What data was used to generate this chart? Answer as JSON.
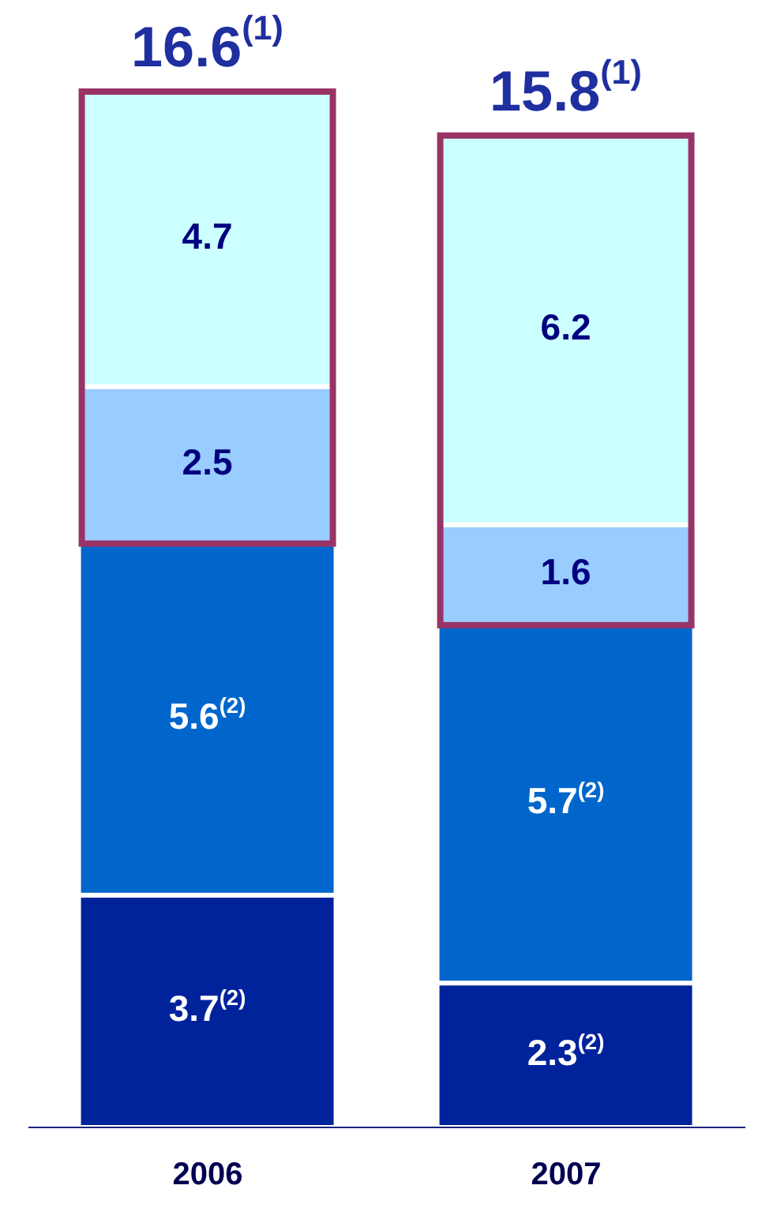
{
  "chart_data": {
    "type": "bar",
    "stacked": true,
    "categories": [
      "2006",
      "2007"
    ],
    "series": [
      {
        "color": "#00239c",
        "values": [
          3.7,
          2.3
        ],
        "value_labels": [
          "3.7$^{(2)}$",
          "2.3$^{(2)}$"
        ]
      },
      {
        "color": "#0066cc",
        "values": [
          5.6,
          5.7
        ],
        "value_labels": [
          "5.6$^{(2)}$",
          "5.7$^{(2)}$"
        ]
      },
      {
        "color": "#99ccff",
        "values": [
          2.5,
          1.6
        ],
        "value_labels": [
          "2.5",
          "1.6"
        ]
      },
      {
        "color": "#ccffff",
        "values": [
          4.7,
          6.2
        ],
        "value_labels": [
          "4.7",
          "6.2"
        ]
      }
    ],
    "totals": [
      "16.6$^{(1)}$",
      "15.8$^{(1)}$"
    ],
    "legend": false,
    "grid": false
  }
}
